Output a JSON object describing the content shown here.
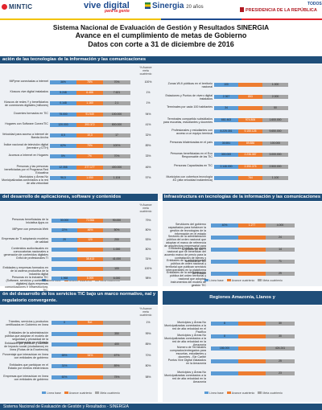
{
  "header": {
    "logo_mintic": "MINTIC",
    "logo_vive": "vive digital",
    "logo_vive_sub": "para la gente",
    "logo_sinergia": "Sinergia",
    "logo_sinergia_years": "20 años",
    "presidency": "PRESIDENCIA DE LA REPÚBLICA",
    "logo_todos": "TODOS"
  },
  "title": {
    "line1": "Sistema Nacional de Evaluación de Gestión y Resultados SINERGIA",
    "line2": "Avance en el cumplimiento de metas de Gobierno",
    "line3": "Datos con corte a 31 de diciembre de 2016"
  },
  "colors": {
    "band": "#1f4e79",
    "line_base": "#5b9bd5",
    "avance": "#ed7d31",
    "meta": "#a5a5a5",
    "green_bar": "#70ad47"
  },
  "legend": {
    "line_base": "Línea base",
    "avance": "Avance cuatrienio",
    "meta": "Meta cuatrienio"
  },
  "col_header": "% Avance meta cuatrienio",
  "sections": {
    "s1": {
      "title": "ación de las tecnologías de la información y las comunicaciones",
      "left_rows": [
        {
          "label": "MiPyme conectadas a internet",
          "segs": [
            "36%",
            "75%",
            "70%"
          ],
          "pct": "100%"
        },
        {
          "label": "Kioscos vive digital instalados",
          "segs": [
            "5.248",
            "6.488",
            "7.621"
          ],
          "pct": "1%"
        },
        {
          "label": "Kioscos de redes Y y beneficiarios de conexiones digitales (millones)",
          "segs": [
            "0.148",
            "1.160",
            "2,1"
          ],
          "pct": "1%"
        },
        {
          "label": "Docentes formados en TIC",
          "segs": [
            "75.000",
            "91.949",
            "100.000"
          ],
          "pct": "94%"
        },
        {
          "label": "Hogares con Software Conex/TIC",
          "segs": [
            "120.000",
            "393.372",
            "800.000"
          ],
          "pct": "41%"
        },
        {
          "label": "Velocidad para acceso a internet de Banda Ancha",
          "segs": [
            "8,5",
            "10,3",
            "17"
          ],
          "pct": "32%"
        },
        {
          "label": "Índice nacional de televisión digital (terrestre y DTH)",
          "segs": [
            "62%",
            "79%",
            "100%"
          ],
          "pct": "89%"
        },
        {
          "label": "Accesos a Internet en Hogares",
          "segs": [
            "5%",
            "7%",
            "70%"
          ],
          "pct": "33%"
        },
        {
          "label": "Personas y las personas beneficiadas por el Programa Red Educativa",
          "segs": [
            "12.358",
            "277.177",
            "400.000"
          ],
          "pct": "46%"
        },
        {
          "label": "Municipios y Áreas No Municipalizadas conectados a la red de alta velocidad",
          "segs": [
            "96,5",
            "1.050",
            "1.104"
          ],
          "pct": "97%"
        }
      ],
      "right_rows": [
        {
          "label": "Zonas Wi-fi públicas en el territorio nacional",
          "segs": [
            "100",
            "",
            "1.000"
          ]
        },
        {
          "label": "Estaciones y Puntos de vivero digital instalados",
          "segs": [
            "2.367",
            "853",
            "2.000"
          ]
        },
        {
          "label": "Terminales por cada 100 habitantes",
          "segs": [
            "34",
            "",
            "50"
          ]
        },
        {
          "label": "Terminales compartido subsidiados para escuelas, estudiantes y docentes",
          "segs": [
            "661.463",
            "974.806",
            "1.600.000"
          ]
        },
        {
          "label": "Profesionales y estudiantes con acceso a un equipo terminal",
          "segs": [
            "8.225.351",
            "9.150.126",
            "9.650.000"
          ]
        },
        {
          "label": "Personas bilaterizadas en el país",
          "segs": [
            "30.551",
            "89.886",
            "100.000"
          ]
        },
        {
          "label": "Personas beneficiadas en el Ecu Responsable de las TIC",
          "segs": [
            "300.000",
            "2.236.087",
            "3.000.000"
          ]
        },
        {
          "label": "Personas Capacitadas en TIC",
          "segs": [
            "2.146.000",
            "2.390.375",
            "2.500.000"
          ]
        },
        {
          "label": "Municipios con cobertura tecnología 4G (alta velocidad inalámbrica)",
          "segs": [
            "",
            "764",
            "1.100"
          ]
        }
      ]
    },
    "s2": {
      "title": "del desarrollo de aplicaciones, software y contenidos",
      "rows": [
        {
          "label": "Personas beneficiadas de la Iniciativa Apps.co",
          "segs": [
            "30.000",
            "70.966",
            "90.000"
          ],
          "pct": "79%"
        },
        {
          "label": "MiPyme con presencia Web",
          "segs": [
            "22%",
            "46%",
            "50%"
          ],
          "pct": "80%"
        },
        {
          "label": "Empresas de TI adoptando modelos de calidad",
          "segs": [
            "20",
            "120",
            "200"
          ],
          "pct": "53%"
        },
        {
          "label": "Contenidos audiovisuales en convocatorias nacionales a generación de contenidos digitales",
          "segs": [
            "",
            "",
            "1.000"
          ],
          "pct": "80%"
        },
        {
          "label": "Grifol de profesionales TI",
          "segs": [
            "",
            "38.413",
            "41.000"
          ],
          "pct": "31%"
        },
        {
          "label": "Entidades y empresas formados en de la cadena productiva de la industria digital",
          "segs": [
            "",
            "",
            "100"
          ],
          "pct": "100%"
        },
        {
          "label": "Personas en la industria TIC (Software, servicios y contenidos digitales) Apps empresas comunicaciones e infraestructura, TIC.",
          "segs": [
            "1.968",
            "5.999",
            "6.000"
          ],
          "pct": "98%"
        }
      ]
    },
    "s3": {
      "title": "Infraestructura en tecnologías de la información y las comunicaciones",
      "rows": [
        {
          "label": "Servidores del gobierno capacitados para fortalecer la gestión de tecnologías de la información en el estado",
          "segs": [
            "40%",
            "1.277",
            "4.000"
          ]
        },
        {
          "label": "Sectores de la administración pública del orden nacional que adoptan el marco de referencia de arquitectura empresarial para la gestión de las TI",
          "segs": [
            "",
            "",
            "24"
          ]
        },
        {
          "label": "Entidades Públicas del orden nacional que se benefician del acuerdo marco de precio para la contratación de bienes y servicios de TIC",
          "segs": [
            "",
            "",
            "14"
          ]
        },
        {
          "label": "Entidades de la administración pública de orden nacional y territorial que publican servicios interoperables en la plataforma del Estado",
          "segs": [
            "",
            "",
            "71"
          ]
        },
        {
          "label": "Entidades de la administración pública del orden territorial y nacional que adoptan instrumentos del modelo de gestión TIC",
          "segs": [
            "",
            "",
            "29"
          ]
        }
      ]
    },
    "s4": {
      "title": "ón del desarrollo de los servicios TIC bajo un marco normativo, nal y regulatorio convergente.",
      "rows": [
        {
          "label": "Trámites, servicios y productos certificados en Gobierno en línea",
          "segs": [
            "0",
            "Ref.",
            ""
          ],
          "pct": "1%"
        },
        {
          "label": "Entidades de la administración pública que adoptan el modelo de seguridad y privacidad de la información en el Estado",
          "segs": [
            "",
            "",
            "350"
          ],
          "pct": "99%"
        },
        {
          "label": "Entidades que publican y tramitan de Impacto social (ciudadanos) en línea (Rutas de la Excelencia)",
          "segs": [
            "",
            "",
            "400"
          ],
          "pct": "85%"
        },
        {
          "label": "Porcentaje que interactúan en línea con entidades de gobierno",
          "segs": [
            "65%",
            "54%",
            "67%"
          ],
          "pct": "70%"
        },
        {
          "label": "Entidades que participan en el Estado por medios electrónicos",
          "segs": [
            "31%",
            "",
            "89%"
          ],
          "pct": "80%"
        },
        {
          "label": "Empresas que interactúan en línea con entidades de gobierno",
          "segs": [
            "60%",
            "",
            "75%"
          ],
          "pct": "58%"
        }
      ]
    },
    "s5": {
      "title": "Regiones Amazonía, Llanos y",
      "rows": [
        {
          "label": "Municipios y Áreas No Municipalizadas conectados a la red de alta velocidad en el Pacífico",
          "segs": [
            "8",
            "",
            "30"
          ]
        },
        {
          "label": "Municipios y Áreas No Municipalizadas conectados a la red de alta velocidad en la Amazonía",
          "segs": [
            "8",
            "",
            "30"
          ]
        },
        {
          "label": "Número de Terminales comprados/entregados para escuelas, estudiantes y docentes - Eje Caribe",
          "segs": [
            "186.000",
            "",
            "424.241"
          ]
        },
        {
          "label": "Puntos Vive Digital instalados en la Amazonía",
          "segs": [
            "",
            "",
            "25"
          ]
        },
        {
          "label": "Municipios y Áreas No Municipalizadas conectados a la red de alta velocidad en la Amazonía",
          "segs": [
            "",
            "",
            "23"
          ]
        }
      ]
    }
  },
  "footer": "Sistema Nacional de Evaluación de Gestión y Resultados - SINERGIA"
}
